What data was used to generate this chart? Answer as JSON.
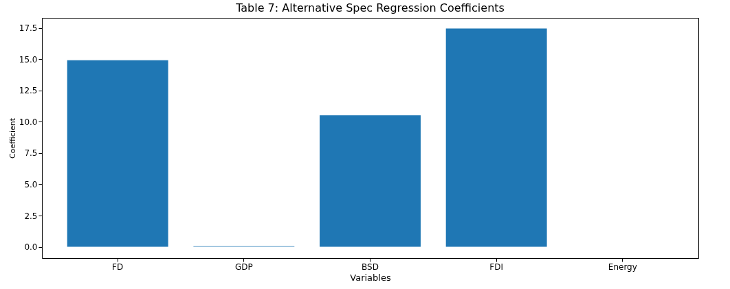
{
  "chart_data": {
    "type": "bar",
    "title": "Table 7: Alternative Spec Regression Coefficients",
    "xlabel": "Variables",
    "ylabel": "Coefficient",
    "categories": [
      "FD",
      "GDP",
      "BSD",
      "FDI",
      "Energy"
    ],
    "values": [
      14.91,
      0.05,
      10.51,
      17.45,
      0
    ],
    "color": "#1f77b4",
    "ylim": [
      -0.9,
      18.3
    ],
    "yticks": [
      {
        "value": 0,
        "label": "0.0"
      },
      2.5,
      {
        "value": 5,
        "label": "5.0"
      },
      7.5,
      {
        "value": 10,
        "label": "10.0"
      },
      12.5,
      {
        "value": 15,
        "label": "15.0"
      },
      17.5
    ],
    "grid": false
  }
}
